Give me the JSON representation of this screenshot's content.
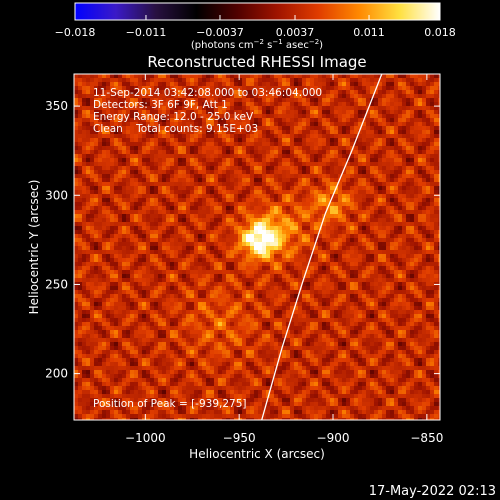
{
  "chart_data": {
    "type": "heatmap",
    "title": "Reconstructed RHESSI Image",
    "xlabel": "Heliocentric X (arcsec)",
    "ylabel": "Heliocentric Y (arcsec)",
    "xlim": [
      -1038,
      -843
    ],
    "ylim": [
      174,
      368
    ],
    "x_ticks": [
      {
        "value": -1000,
        "label": "−1000"
      },
      {
        "value": -950,
        "label": "−950"
      },
      {
        "value": -900,
        "label": "−900"
      },
      {
        "value": -850,
        "label": "−850"
      }
    ],
    "y_ticks": [
      {
        "value": 200,
        "label": "200"
      },
      {
        "value": 250,
        "label": "250"
      },
      {
        "value": 300,
        "label": "300"
      },
      {
        "value": 350,
        "label": "350"
      }
    ],
    "colorbar": {
      "range": [
        -0.018,
        0.018
      ],
      "ticks": [
        {
          "value": -0.018,
          "label": "−0.018"
        },
        {
          "value": -0.011,
          "label": "−0.011"
        },
        {
          "value": -0.0037,
          "label": "−0.0037"
        },
        {
          "value": 0.0037,
          "label": "0.0037"
        },
        {
          "value": 0.011,
          "label": "0.011"
        },
        {
          "value": 0.018,
          "label": "0.018"
        }
      ],
      "units_prefix": "(photons cm",
      "units_exp1": "−2",
      "units_mid1": " s",
      "units_exp2": "−1",
      "units_mid2": " asec",
      "units_exp3": "−2",
      "units_suffix": ")"
    },
    "info_lines": [
      "11-Sep-2014 03:42:08.000 to 03:46:04.000",
      "Detectors: 3F 6F 9F, Att 1",
      "Energy Range: 12.0 - 25.0 keV",
      "Clean    Total counts: 9.15E+03"
    ],
    "peak_label": "Position of Peak = [-939,275]",
    "peak": {
      "x": -939,
      "y": 275
    },
    "sources": [
      {
        "x": -939,
        "y": 275,
        "amplitude": 1.0,
        "sigma": 7
      },
      {
        "x": -928,
        "y": 281,
        "amplitude": 0.35,
        "sigma": 11
      },
      {
        "x": -901,
        "y": 295,
        "amplitude": 0.38,
        "sigma": 8
      },
      {
        "x": -960,
        "y": 228,
        "amplitude": 0.2,
        "sigma": 14
      }
    ],
    "limb_points": [
      {
        "x": -938,
        "y": 174
      },
      {
        "x": -927,
        "y": 215
      },
      {
        "x": -916,
        "y": 252
      },
      {
        "x": -904,
        "y": 290
      },
      {
        "x": -890,
        "y": 325
      },
      {
        "x": -874,
        "y": 368
      }
    ],
    "colors": {
      "background": "#000000",
      "foreground": "#ffffff",
      "colormap": [
        "#0000ff",
        "#3a1ac8",
        "#281040",
        "#000000",
        "#500000",
        "#a01400",
        "#e03c00",
        "#ff8800",
        "#ffe040",
        "#ffffff"
      ]
    }
  },
  "footer": {
    "timestamp": "17-May-2022 02:13"
  }
}
